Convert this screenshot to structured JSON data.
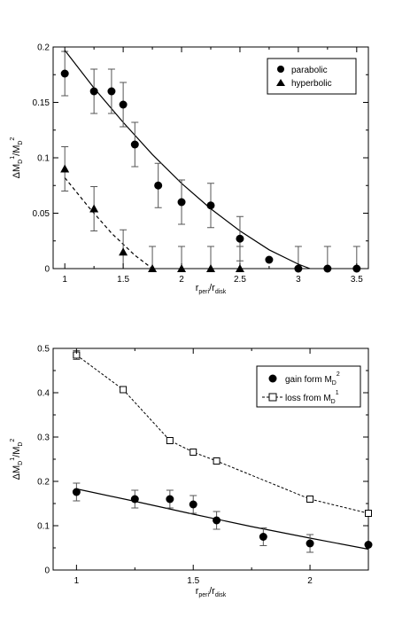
{
  "chart_data": [
    {
      "type": "scatter",
      "xlabel": {
        "base": "r",
        "sub1": "peri",
        "mid": "/r",
        "sub2": "disk"
      },
      "ylabel": {
        "a": "ΔM",
        "sub1": "D",
        "sup1": "1",
        "b": "/M",
        "sub2": "D",
        "sup2": "2"
      },
      "xlim": [
        0.9,
        3.6
      ],
      "ylim": [
        0,
        0.2
      ],
      "xticks": [
        1,
        1.5,
        2,
        2.5,
        3,
        3.5
      ],
      "xtick_labels": [
        "1",
        "1.5",
        "2",
        "2.5",
        "3",
        "3.5"
      ],
      "yticks": [
        0,
        0.05,
        0.1,
        0.15,
        0.2
      ],
      "ytick_labels": [
        "0",
        "0.05",
        "0.1",
        "0.15",
        "0.2"
      ],
      "legend_position": "top-right",
      "series": [
        {
          "name": "parabolic",
          "marker": "circle",
          "x": [
            1,
            1.25,
            1.4,
            1.5,
            1.6,
            1.8,
            2,
            2.25,
            2.5,
            2.75,
            3,
            3.25,
            3.5
          ],
          "y": [
            0.176,
            0.16,
            0.16,
            0.148,
            0.112,
            0.075,
            0.06,
            0.057,
            0.027,
            0.008,
            0,
            0,
            0
          ],
          "err": [
            0.02,
            0.02,
            0.02,
            0.02,
            0.02,
            0.02,
            0.02,
            0.02,
            0.02,
            0,
            0.02,
            0.02,
            0.02
          ]
        },
        {
          "name": "hyperbolic",
          "marker": "triangle",
          "x": [
            1,
            1.25,
            1.5,
            1.75,
            2,
            2.25,
            2.5
          ],
          "y": [
            0.09,
            0.054,
            0.015,
            0,
            0,
            0,
            0
          ],
          "err": [
            0.02,
            0.02,
            0.02,
            0.02,
            0.02,
            0.02,
            0.02
          ]
        }
      ],
      "fits": [
        {
          "style": "solid",
          "x": [
            1,
            1.25,
            1.5,
            1.75,
            2,
            2.25,
            2.5,
            2.75,
            3,
            3.1
          ],
          "y": [
            0.197,
            0.163,
            0.132,
            0.103,
            0.077,
            0.054,
            0.034,
            0.017,
            0.004,
            0
          ]
        },
        {
          "style": "dashed",
          "x": [
            1,
            1.2,
            1.4,
            1.6,
            1.75
          ],
          "y": [
            0.082,
            0.056,
            0.032,
            0.012,
            0
          ]
        }
      ]
    },
    {
      "type": "line",
      "xlabel": {
        "base": "r",
        "sub1": "peri",
        "mid": "/r",
        "sub2": "disk"
      },
      "ylabel": {
        "a": "ΔM",
        "sub1": "D",
        "sup1": "1",
        "b": "/M",
        "sub2": "D",
        "sup2": "2"
      },
      "xlim": [
        0.9,
        2.25
      ],
      "ylim": [
        0,
        0.5
      ],
      "xticks": [
        1,
        1.5,
        2
      ],
      "xtick_labels": [
        "1",
        "1.5",
        "2"
      ],
      "yticks": [
        0,
        0.1,
        0.2,
        0.3,
        0.4,
        0.5
      ],
      "ytick_labels": [
        "0",
        "0.1",
        "0.2",
        "0.3",
        "0.4",
        "0.5"
      ],
      "legend_position": "top-right",
      "series": [
        {
          "name": {
            "text": "gain form M",
            "sub": "D",
            "sup": "2"
          },
          "marker": "circle",
          "x": [
            1,
            1.25,
            1.4,
            1.5,
            1.6,
            1.8,
            2,
            2.25
          ],
          "y": [
            0.176,
            0.16,
            0.16,
            0.148,
            0.112,
            0.075,
            0.06,
            0.057
          ],
          "err": [
            0.02,
            0.02,
            0.02,
            0.02,
            0.02,
            0.02,
            0.02,
            0
          ]
        },
        {
          "name": {
            "text": "loss from M",
            "sub": "D",
            "sup": "1"
          },
          "marker": "square-open",
          "line": "dashed",
          "x": [
            1,
            1.2,
            1.4,
            1.5,
            1.6,
            2,
            2.25
          ],
          "y": [
            0.485,
            0.407,
            0.292,
            0.266,
            0.246,
            0.16,
            0.128
          ],
          "err": [
            0.01,
            0,
            0,
            0,
            0,
            0,
            0
          ]
        }
      ],
      "fits": [
        {
          "style": "solid",
          "x": [
            1,
            1.25,
            1.5,
            1.75,
            2,
            2.25
          ],
          "y": [
            0.183,
            0.155,
            0.126,
            0.098,
            0.072,
            0.047
          ]
        }
      ]
    }
  ]
}
